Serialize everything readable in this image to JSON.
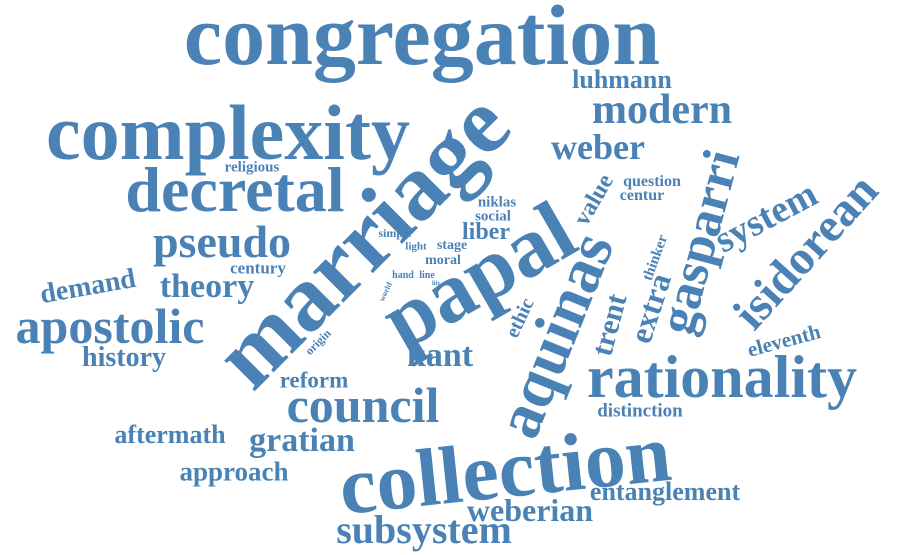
{
  "color": "#4a82b5",
  "words": [
    {
      "text": "congregation"
    },
    {
      "text": "complexity"
    },
    {
      "text": "modern"
    },
    {
      "text": "luhmann"
    },
    {
      "text": "weber"
    },
    {
      "text": "decretal"
    },
    {
      "text": "religious"
    },
    {
      "text": "pseudo"
    },
    {
      "text": "demand"
    },
    {
      "text": "theory"
    },
    {
      "text": "century"
    },
    {
      "text": "apostolic"
    },
    {
      "text": "history"
    },
    {
      "text": "reform"
    },
    {
      "text": "kant"
    },
    {
      "text": "council"
    },
    {
      "text": "aftermath"
    },
    {
      "text": "gratian"
    },
    {
      "text": "approach"
    },
    {
      "text": "collection"
    },
    {
      "text": "weberian"
    },
    {
      "text": "subsystem"
    },
    {
      "text": "entanglement"
    },
    {
      "text": "distinction"
    },
    {
      "text": "rationality"
    },
    {
      "text": "eleventh"
    },
    {
      "text": "isidorean"
    },
    {
      "text": "system"
    },
    {
      "text": "gasparri"
    },
    {
      "text": "question"
    },
    {
      "text": "centur"
    },
    {
      "text": "value"
    },
    {
      "text": "thinker"
    },
    {
      "text": "extra"
    },
    {
      "text": "trent"
    },
    {
      "text": "ethic"
    },
    {
      "text": "aquinas"
    },
    {
      "text": "papal"
    },
    {
      "text": "marriage"
    },
    {
      "text": "niklas"
    },
    {
      "text": "social"
    },
    {
      "text": "liber"
    },
    {
      "text": "simple"
    },
    {
      "text": "light"
    },
    {
      "text": "stage"
    },
    {
      "text": "moral"
    },
    {
      "text": "hand"
    },
    {
      "text": "line"
    },
    {
      "text": "world"
    },
    {
      "text": "origin"
    },
    {
      "text": "life"
    }
  ]
}
